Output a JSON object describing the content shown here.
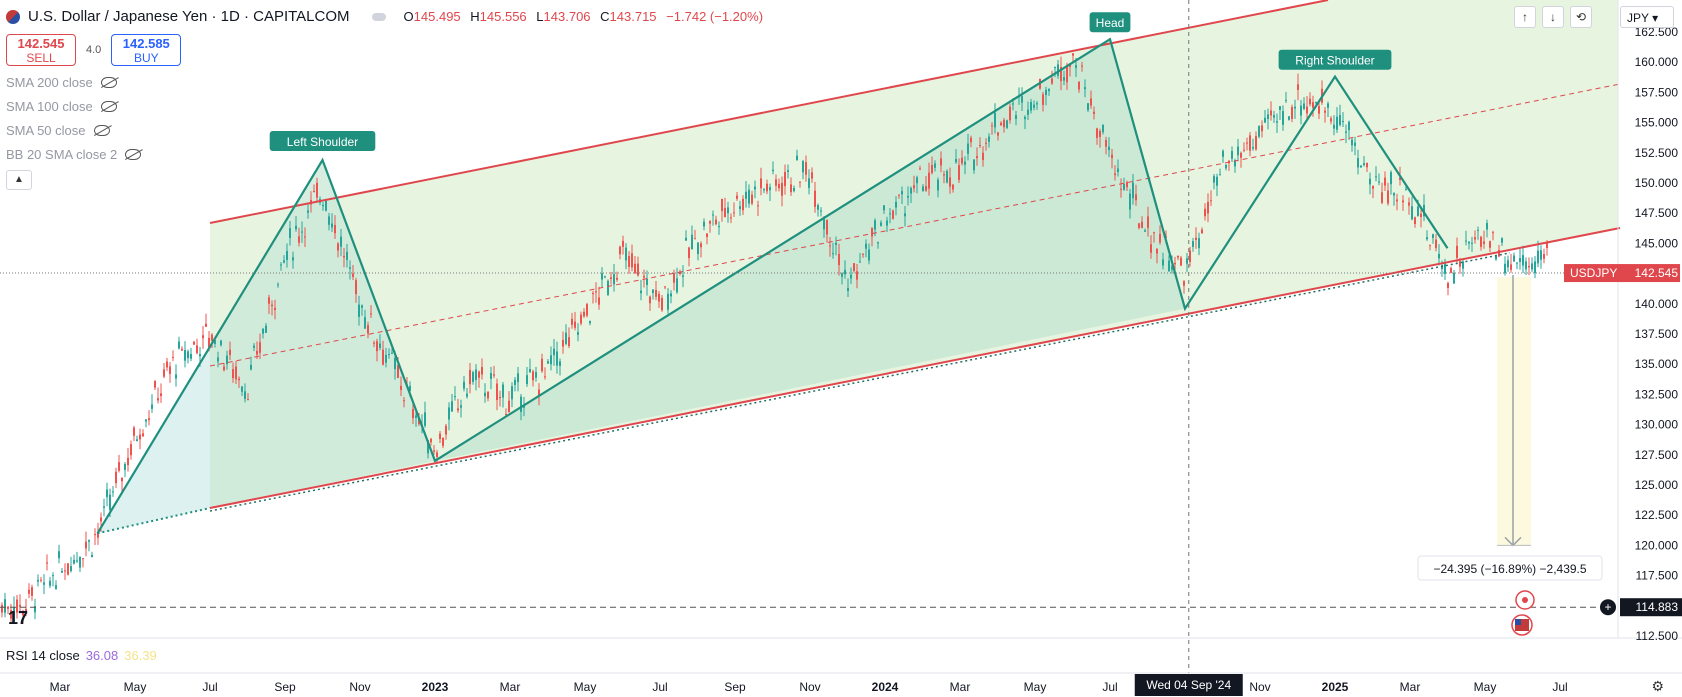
{
  "header": {
    "title": "U.S. Dollar / Japanese Yen · 1D · CAPITALCOM",
    "open_label": "O",
    "open": "145.495",
    "high_label": "H",
    "high": "145.556",
    "low_label": "L",
    "low": "143.706",
    "close_label": "C",
    "close": "143.715",
    "change": "−1.742 (−1.20%)"
  },
  "trade": {
    "sell_price": "142.545",
    "sell_label": "SELL",
    "spread": "4.0",
    "buy_price": "142.585",
    "buy_label": "BUY"
  },
  "indicators": [
    "SMA 200 close",
    "SMA 100 close",
    "SMA 50 close",
    "BB 20 SMA close 2"
  ],
  "currency": "JPY",
  "rsi": {
    "label": "RSI 14 close",
    "value1": "36.08",
    "value2": "36.39"
  },
  "colors": {
    "up": "#26a69a",
    "down": "#ef5350",
    "channel": "#e0474c",
    "pattern": "#1f8f7e",
    "fill": "#e3f2dc"
  },
  "chart_data": {
    "type": "candlestick",
    "symbol_label": "USDJPY",
    "current_price": "142.545",
    "crosshair_price": "114.883",
    "crosshair_date": "Wed 04 Sep '24",
    "projection_label": "−24.395 (−16.89%) −2,439.5",
    "y_ticks": [
      "162.500",
      "160.000",
      "157.500",
      "155.000",
      "152.500",
      "150.000",
      "147.500",
      "145.000",
      "142.500",
      "140.000",
      "137.500",
      "135.000",
      "132.500",
      "130.000",
      "127.500",
      "125.000",
      "122.500",
      "120.000",
      "117.500",
      "115.000",
      "112.500"
    ],
    "ylim": [
      112.5,
      162.5
    ],
    "x_ticks": [
      "Mar",
      "May",
      "Jul",
      "Sep",
      "Nov",
      "2023",
      "Mar",
      "May",
      "Jul",
      "Sep",
      "Nov",
      "2024",
      "Mar",
      "May",
      "Jul",
      "Sep",
      "Nov",
      "2025",
      "Mar",
      "May",
      "Jul"
    ],
    "pattern_labels": [
      "Left Shoulder",
      "Head",
      "Right Shoulder"
    ],
    "pattern_points": [
      {
        "date": "2022-04",
        "price": 121.0
      },
      {
        "date": "2022-10",
        "price": 151.9
      },
      {
        "date": "2023-01",
        "price": 127.0
      },
      {
        "date": "2024-07",
        "price": 161.9
      },
      {
        "date": "2024-09",
        "price": 139.6
      },
      {
        "date": "2025-01",
        "price": 158.8
      },
      {
        "date": "2025-04",
        "price": 144.6
      }
    ],
    "price_path": [
      {
        "date": "2022-02",
        "price": 115.0
      },
      {
        "date": "2022-04",
        "price": 121.0
      },
      {
        "date": "2022-05",
        "price": 129.0
      },
      {
        "date": "2022-06",
        "price": 135.0
      },
      {
        "date": "2022-07",
        "price": 137.5
      },
      {
        "date": "2022-08",
        "price": 133.0
      },
      {
        "date": "2022-09",
        "price": 144.0
      },
      {
        "date": "2022-10",
        "price": 149.5
      },
      {
        "date": "2022-11",
        "price": 140.0
      },
      {
        "date": "2022-12",
        "price": 134.0
      },
      {
        "date": "2023-01",
        "price": 128.0
      },
      {
        "date": "2023-02",
        "price": 134.0
      },
      {
        "date": "2023-03",
        "price": 132.0
      },
      {
        "date": "2023-04",
        "price": 134.5
      },
      {
        "date": "2023-05",
        "price": 139.0
      },
      {
        "date": "2023-06",
        "price": 144.0
      },
      {
        "date": "2023-07",
        "price": 140.0
      },
      {
        "date": "2023-08",
        "price": 145.5
      },
      {
        "date": "2023-09",
        "price": 148.5
      },
      {
        "date": "2023-10",
        "price": 150.0
      },
      {
        "date": "2023-11",
        "price": 151.0
      },
      {
        "date": "2023-12",
        "price": 141.5
      },
      {
        "date": "2024-01",
        "price": 147.0
      },
      {
        "date": "2024-02",
        "price": 150.0
      },
      {
        "date": "2024-03",
        "price": 151.0
      },
      {
        "date": "2024-04",
        "price": 155.0
      },
      {
        "date": "2024-05",
        "price": 157.0
      },
      {
        "date": "2024-06",
        "price": 160.5
      },
      {
        "date": "2024-07",
        "price": 152.0
      },
      {
        "date": "2024-08",
        "price": 146.0
      },
      {
        "date": "2024-09",
        "price": 142.5
      },
      {
        "date": "2024-10",
        "price": 151.0
      },
      {
        "date": "2024-11",
        "price": 154.0
      },
      {
        "date": "2024-12",
        "price": 157.0
      },
      {
        "date": "2025-01",
        "price": 156.0
      },
      {
        "date": "2025-02",
        "price": 150.0
      },
      {
        "date": "2025-03",
        "price": 149.0
      },
      {
        "date": "2025-04",
        "price": 142.5
      },
      {
        "date": "2025-05",
        "price": 146.0
      },
      {
        "date": "2025-05-20",
        "price": 143.7
      }
    ]
  }
}
